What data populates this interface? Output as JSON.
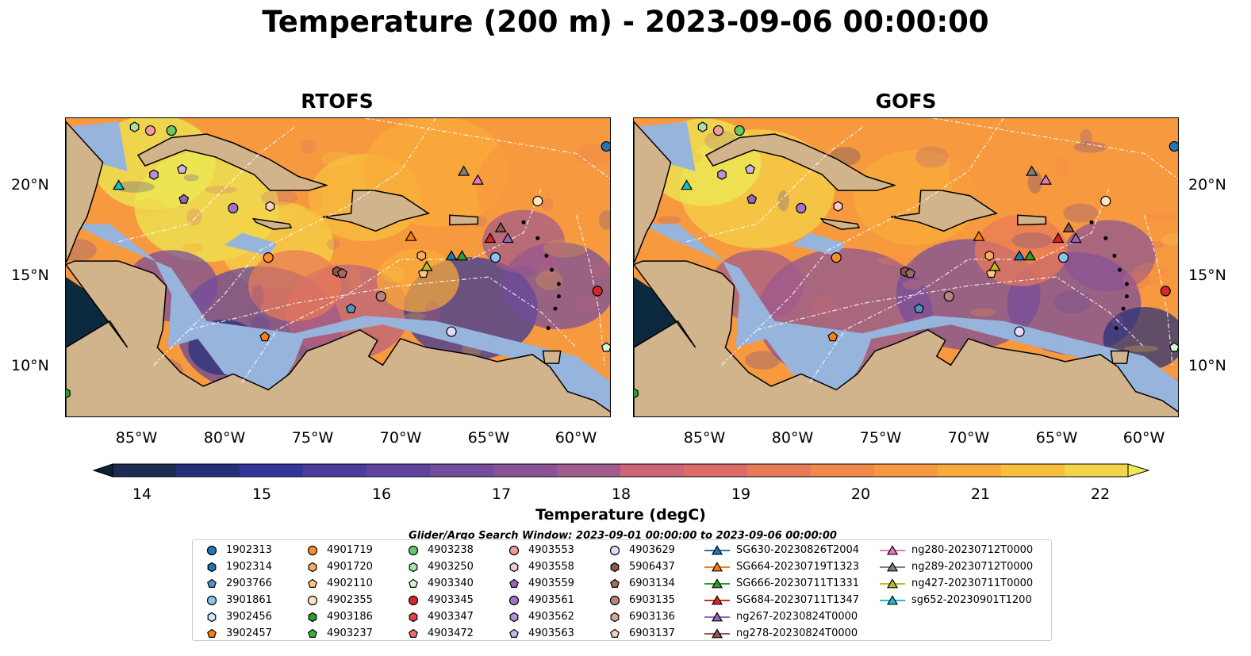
{
  "title": "Temperature (200 m) - 2023-09-06 00:00:00",
  "panels": [
    {
      "title": "RTOFS",
      "model": "rtofs"
    },
    {
      "title": "GOFS",
      "model": "gofs"
    }
  ],
  "axes": {
    "lat_ticks": [
      "20°N",
      "15°N",
      "10°N"
    ],
    "lon_ticks": [
      "85°W",
      "80°W",
      "75°W",
      "70°W",
      "65°W",
      "60°W"
    ]
  },
  "colorbar": {
    "label": "Temperature (degC)",
    "ticks": [
      "14",
      "15",
      "16",
      "17",
      "18",
      "19",
      "20",
      "21",
      "22"
    ],
    "range": [
      14,
      22
    ],
    "step": 0.5,
    "extend": "both"
  },
  "search_window": "Glider/Argo Search Window: 2023-09-01 00:00:00 to 2023-09-06 00:00:00",
  "colors": {
    "land": "#d2b48c",
    "shelf": "#96b4dc",
    "deep_cold": "#0b2a3f",
    "cmap": [
      "#0c2233",
      "#1b2b52",
      "#26307a",
      "#33359a",
      "#4a3d9e",
      "#5e449f",
      "#744c9c",
      "#8a5396",
      "#a15a8c",
      "#b85f80",
      "#cc6574",
      "#dc6d66",
      "#e97a58",
      "#f2884a",
      "#f7993e",
      "#f9ab3a",
      "#f8bf3d",
      "#f4d448",
      "#ecea55"
    ]
  },
  "legend_items": [
    {
      "label": "1902313",
      "marker": "circle",
      "color": "#1f77b4"
    },
    {
      "label": "1902314",
      "marker": "hexagon",
      "color": "#1f77b4"
    },
    {
      "label": "2903766",
      "marker": "pentagon",
      "color": "#4f93c8"
    },
    {
      "label": "3901861",
      "marker": "circle",
      "color": "#8cc3ec"
    },
    {
      "label": "3902456",
      "marker": "hexagon",
      "color": "#cfe6f9"
    },
    {
      "label": "3902457",
      "marker": "pentagon",
      "color": "#ff7f0e"
    },
    {
      "label": "4901719",
      "marker": "circle",
      "color": "#ff8c2a"
    },
    {
      "label": "4901720",
      "marker": "hexagon",
      "color": "#ffaa5e"
    },
    {
      "label": "4902110",
      "marker": "pentagon",
      "color": "#ffc48c"
    },
    {
      "label": "4902355",
      "marker": "circle",
      "color": "#ffe4c4"
    },
    {
      "label": "4903186",
      "marker": "hexagon",
      "color": "#2ca02c"
    },
    {
      "label": "4903237",
      "marker": "pentagon",
      "color": "#3cb33c"
    },
    {
      "label": "4903238",
      "marker": "circle",
      "color": "#69c969"
    },
    {
      "label": "4903250",
      "marker": "hexagon",
      "color": "#a4e3a0"
    },
    {
      "label": "4903340",
      "marker": "pentagon",
      "color": "#d6f5d0"
    },
    {
      "label": "4903345",
      "marker": "circle",
      "color": "#d62728"
    },
    {
      "label": "4903347",
      "marker": "hexagon",
      "color": "#e04444"
    },
    {
      "label": "4903472",
      "marker": "pentagon",
      "color": "#ec6e6e"
    },
    {
      "label": "4903553",
      "marker": "circle",
      "color": "#f29b9b"
    },
    {
      "label": "4903558",
      "marker": "hexagon",
      "color": "#f8cccc"
    },
    {
      "label": "4903559",
      "marker": "pentagon",
      "color": "#9467bd"
    },
    {
      "label": "4903561",
      "marker": "circle",
      "color": "#9d74c6"
    },
    {
      "label": "4903562",
      "marker": "hexagon",
      "color": "#b393d6"
    },
    {
      "label": "4903563",
      "marker": "pentagon",
      "color": "#cbb4e6"
    },
    {
      "label": "4903629",
      "marker": "circle",
      "color": "#e7d9f5"
    },
    {
      "label": "5906437",
      "marker": "hexagon",
      "color": "#8c564b"
    },
    {
      "label": "6903134",
      "marker": "pentagon",
      "color": "#a06b60"
    },
    {
      "label": "6903135",
      "marker": "circle",
      "color": "#b88477"
    },
    {
      "label": "6903136",
      "marker": "hexagon",
      "color": "#d4a798"
    },
    {
      "label": "6903137",
      "marker": "pentagon",
      "color": "#f0d0c4"
    },
    {
      "label": "SG630-20230826T2004",
      "marker": "triangle",
      "color": "#1f77b4"
    },
    {
      "label": "SG664-20230719T1323",
      "marker": "triangle",
      "color": "#ff7f0e"
    },
    {
      "label": "SG666-20230711T1331",
      "marker": "triangle",
      "color": "#2ca02c"
    },
    {
      "label": "SG684-20230711T1347",
      "marker": "triangle",
      "color": "#d62728"
    },
    {
      "label": "ng267-20230824T0000",
      "marker": "triangle",
      "color": "#9467bd"
    },
    {
      "label": "ng278-20230824T0000",
      "marker": "triangle",
      "color": "#8c564b"
    },
    {
      "label": "ng280-20230712T0000",
      "marker": "triangle",
      "color": "#e377c2"
    },
    {
      "label": "ng289-20230712T0000",
      "marker": "triangle",
      "color": "#7f7f7f"
    },
    {
      "label": "ng427-20230711T0000",
      "marker": "triangle",
      "color": "#bcbd22"
    },
    {
      "label": "sg652-20230901T1200",
      "marker": "triangle",
      "color": "#17becf"
    }
  ],
  "chart_data": {
    "type": "heatmap",
    "title": "Temperature (200 m) - 2023-09-06 00:00:00",
    "variable": "Temperature (degC)",
    "depth": "200 m",
    "extent": {
      "lon": [
        -89,
        -58
      ],
      "lat": [
        7,
        24
      ]
    },
    "clim": [
      14,
      22
    ],
    "panels": [
      "RTOFS",
      "GOFS"
    ],
    "observations": [
      {
        "id": "1902313",
        "lon": -58.3,
        "lat": 22.4
      },
      {
        "id": "4903238",
        "lon": -83.0,
        "lat": 23.3
      },
      {
        "id": "4903250",
        "lon": -85.1,
        "lat": 23.5
      },
      {
        "id": "4903553",
        "lon": -84.2,
        "lat": 23.3
      },
      {
        "id": "4903562",
        "lon": -84.0,
        "lat": 20.8
      },
      {
        "id": "4903563",
        "lon": -82.4,
        "lat": 21.1
      },
      {
        "id": "4903559",
        "lon": -82.3,
        "lat": 19.4
      },
      {
        "id": "4903561",
        "lon": -79.5,
        "lat": 18.9
      },
      {
        "id": "4903558",
        "lon": -77.4,
        "lat": 19.0
      },
      {
        "id": "4902355",
        "lon": -62.2,
        "lat": 19.3
      },
      {
        "id": "4901719",
        "lon": -77.5,
        "lat": 16.1
      },
      {
        "id": "4903345",
        "lon": -58.8,
        "lat": 14.2
      },
      {
        "id": "4903340",
        "lon": -58.3,
        "lat": 11.0
      },
      {
        "id": "4903186",
        "lon": -89.0,
        "lat": 8.4
      },
      {
        "id": "4901720",
        "lon": -68.8,
        "lat": 16.2
      },
      {
        "id": "4902110",
        "lon": -68.7,
        "lat": 15.2
      },
      {
        "id": "3901861",
        "lon": -64.6,
        "lat": 16.1
      },
      {
        "id": "4903629",
        "lon": -67.1,
        "lat": 11.9
      },
      {
        "id": "2903766",
        "lon": -72.8,
        "lat": 13.2
      },
      {
        "id": "6903135",
        "lon": -71.1,
        "lat": 13.9
      },
      {
        "id": "3902457",
        "lon": -77.7,
        "lat": 11.6
      },
      {
        "id": "5906437",
        "lon": -73.6,
        "lat": 15.3
      },
      {
        "id": "6903134",
        "lon": -73.3,
        "lat": 15.2
      },
      {
        "id": "SG630-20230826T2004",
        "lon": -67.1,
        "lat": 16.2
      },
      {
        "id": "SG664-20230719T1323",
        "lon": -69.4,
        "lat": 17.3
      },
      {
        "id": "SG666-20230711T1331",
        "lon": -66.5,
        "lat": 16.2
      },
      {
        "id": "SG684-20230711T1347",
        "lon": -64.9,
        "lat": 17.2
      },
      {
        "id": "ng267-20230824T0000",
        "lon": -63.9,
        "lat": 17.2
      },
      {
        "id": "ng278-20230824T0000",
        "lon": -64.3,
        "lat": 17.8
      },
      {
        "id": "ng280-20230712T0000",
        "lon": -65.6,
        "lat": 20.5
      },
      {
        "id": "ng289-20230712T0000",
        "lon": -66.4,
        "lat": 21.0
      },
      {
        "id": "ng427-20230711T0000",
        "lon": -68.5,
        "lat": 15.6
      },
      {
        "id": "sg652-20230901T1200",
        "lon": -86.0,
        "lat": 20.2
      }
    ]
  }
}
